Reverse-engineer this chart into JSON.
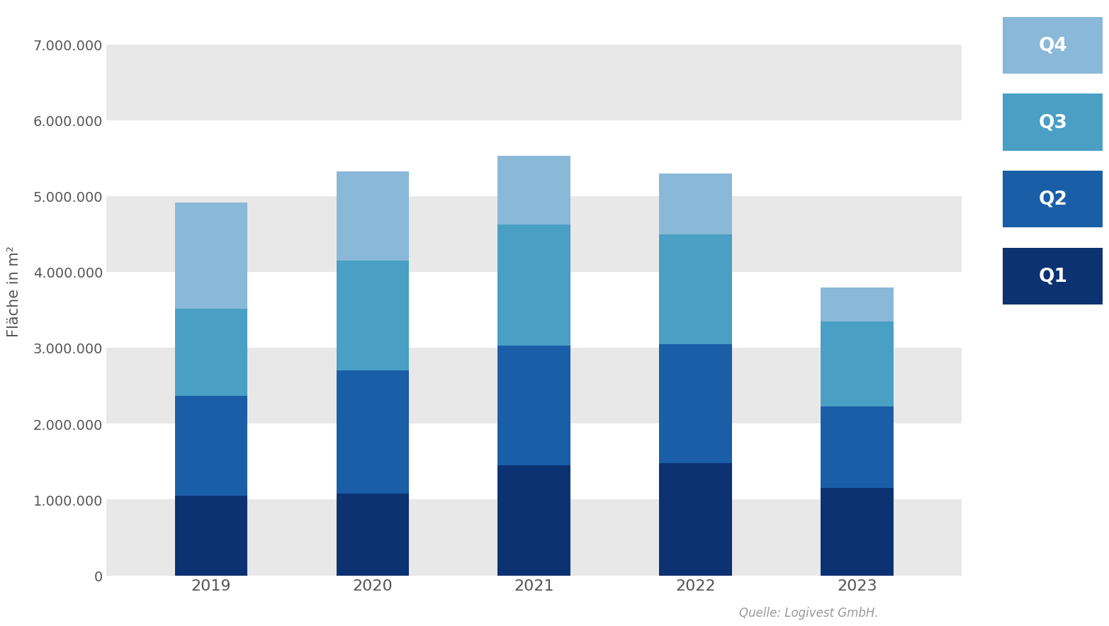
{
  "years": [
    "2019",
    "2020",
    "2021",
    "2022",
    "2023"
  ],
  "Q1": [
    1050000,
    1080000,
    1450000,
    1480000,
    1150000
  ],
  "Q2": [
    1320000,
    1620000,
    1580000,
    1570000,
    1080000
  ],
  "Q3": [
    1150000,
    1450000,
    1600000,
    1450000,
    1120000
  ],
  "Q4": [
    1400000,
    1180000,
    900000,
    800000,
    450000
  ],
  "colors": {
    "Q1": "#0d3272",
    "Q2": "#1a5ea8",
    "Q3": "#4a9fc4",
    "Q4": "#8ab8d8"
  },
  "ylabel": "Fläche in m²",
  "ylim": [
    0,
    7500000
  ],
  "yticks": [
    0,
    1000000,
    2000000,
    3000000,
    4000000,
    5000000,
    6000000,
    7000000
  ],
  "ytick_labels": [
    "0",
    "1.000.000",
    "2.000.000",
    "3.000.000",
    "4.000.000",
    "5.000.000",
    "6.000.000",
    "7.000.000"
  ],
  "source_text": "Quelle: Logivest GmbH.",
  "background_color": "#ffffff",
  "bar_width": 0.45,
  "legend_labels": [
    "Q4",
    "Q3",
    "Q2",
    "Q1"
  ],
  "band_color_even": "#e8e8e8",
  "band_color_odd": "#ffffff"
}
